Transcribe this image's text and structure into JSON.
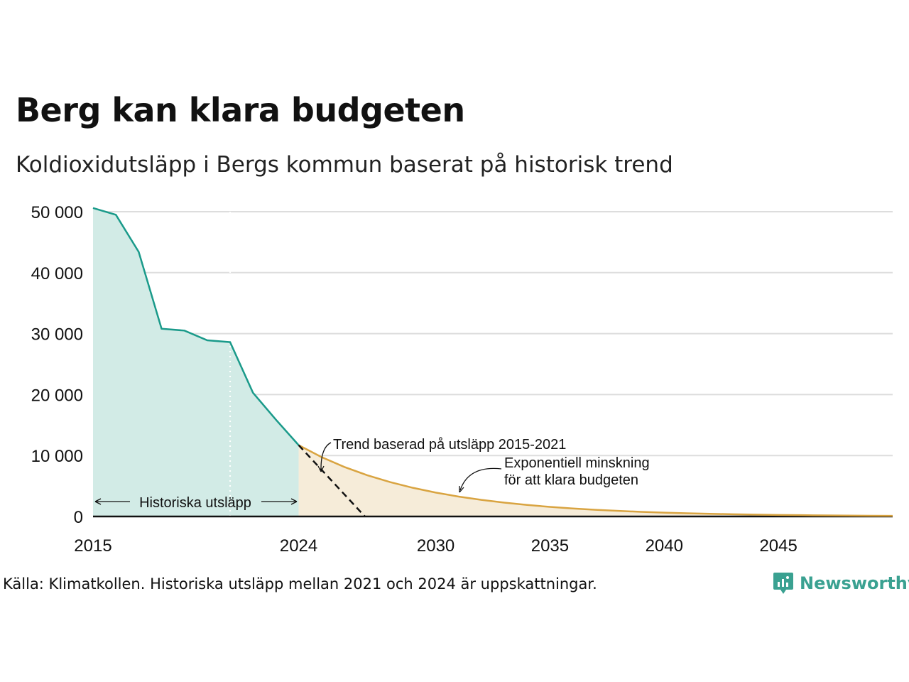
{
  "title": "Berg kan klara budgeten",
  "subtitle": "Koldioxidutsläpp i Bergs kommun baserat på historisk trend",
  "source": "Källa: Klimatkollen. Historiska utsläpp mellan 2021 och 2024 är uppskattningar.",
  "logo": {
    "text": "Newsworthy",
    "icon": "newsworthy-logo-icon",
    "color": "#3aa191"
  },
  "colors": {
    "historical_line": "#1a9a8a",
    "historical_fill": "#d2ebe6",
    "budget_line": "#d9a441",
    "budget_fill": "#f6ecd9",
    "trend_line": "#111111",
    "grid": "#dddddd"
  },
  "chart_data": {
    "type": "area",
    "ylim": [
      0,
      50000
    ],
    "xlim": [
      2015,
      2050
    ],
    "y_ticks": [
      0,
      10000,
      20000,
      30000,
      40000,
      50000
    ],
    "y_tick_labels": [
      "0",
      "10 000",
      "20 000",
      "30 000",
      "40 000",
      "50 000"
    ],
    "x_ticks": [
      2015,
      2024,
      2030,
      2035,
      2040,
      2045
    ],
    "x_tick_labels": [
      "2015",
      "2024",
      "2030",
      "2035",
      "2040",
      "2045"
    ],
    "estimate_start_year": 2021,
    "series": [
      {
        "key": "historical",
        "x": [
          2015,
          2016,
          2017,
          2018,
          2019,
          2020,
          2021,
          2022,
          2023,
          2024
        ],
        "values": [
          50600,
          49500,
          43400,
          30800,
          30500,
          28900,
          28600,
          20300,
          15900,
          11700
        ]
      },
      {
        "key": "budget",
        "x": [
          2024,
          2025,
          2026,
          2027,
          2028,
          2029,
          2030,
          2031,
          2032,
          2033,
          2034,
          2035,
          2036,
          2037,
          2038,
          2039,
          2040,
          2041,
          2042,
          2043,
          2044,
          2045,
          2046,
          2047,
          2048,
          2049,
          2050
        ],
        "values": [
          11700,
          9750,
          8125,
          6771,
          5643,
          4702,
          3918,
          3265,
          2721,
          2268,
          1890,
          1575,
          1312,
          1094,
          911,
          759,
          633,
          527,
          440,
          366,
          305,
          254,
          212,
          177,
          147,
          123,
          102
        ]
      },
      {
        "key": "trend",
        "x": [
          2024,
          2026.9
        ],
        "values": [
          11700,
          0
        ]
      },
      {
        "key": "trend_zero",
        "x": [
          2026.9,
          2050
        ],
        "values": [
          0,
          0
        ]
      }
    ],
    "annotations": {
      "historical": "Historiska utsläpp",
      "trend": "Trend baserad på utsläpp 2015-2021",
      "budget_line1": "Exponentiell minskning",
      "budget_line2": "för att klara budgeten"
    }
  }
}
